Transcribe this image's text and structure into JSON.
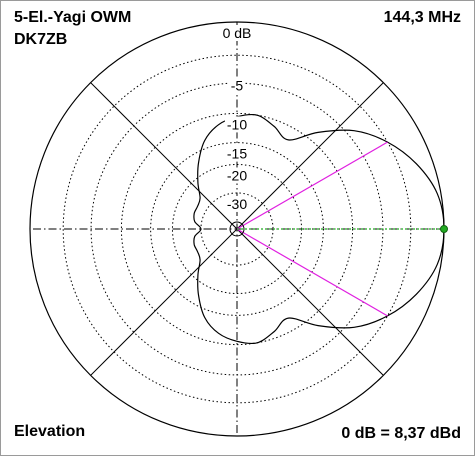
{
  "header": {
    "title_line1": "5-El.-Yagi OWM",
    "title_line2": "DK7ZB",
    "frequency": "144,3 MHz"
  },
  "footer": {
    "plane": "Elevation",
    "reference": "0 dB = 8,37 dBd"
  },
  "chart_data": {
    "type": "polar",
    "plane": "Elevation",
    "ring_labels": [
      "0 dB",
      "-5",
      "-10",
      "-15",
      "-20",
      "-30"
    ],
    "ring_levels_db": [
      0,
      -5,
      -10,
      -15,
      -20,
      -30
    ],
    "angle_unit": "degrees",
    "radiation_pattern": {
      "angles_deg": [
        0,
        10,
        20,
        30,
        40,
        50,
        60,
        70,
        80,
        90,
        100,
        110,
        120,
        130,
        140,
        150,
        160,
        170,
        180,
        190,
        200,
        210,
        220,
        230,
        240,
        250,
        260,
        270,
        280,
        290,
        300,
        310,
        320,
        330,
        340,
        350
      ],
      "gain_db": [
        0,
        -0.3,
        -1.4,
        -3,
        -5.2,
        -8.5,
        -12,
        -11,
        -10,
        -10.5,
        -11.5,
        -13.5,
        -17,
        -21,
        -25,
        -26,
        -26,
        -27,
        -30,
        -27,
        -26,
        -26,
        -25,
        -21,
        -17,
        -13.5,
        -11.5,
        -10.5,
        -10,
        -11,
        -12,
        -8.5,
        -5.2,
        -3,
        -1.4,
        -0.3
      ]
    },
    "beamwidth_markers_deg": [
      30,
      -30
    ],
    "max_marker_deg": 0,
    "colors": {
      "pattern": "#000000",
      "grid": "#000000",
      "beamwidth": "#e020e0",
      "max_line": "#22aa22",
      "ring_label_bg": "#ffffff"
    },
    "grid": true
  }
}
